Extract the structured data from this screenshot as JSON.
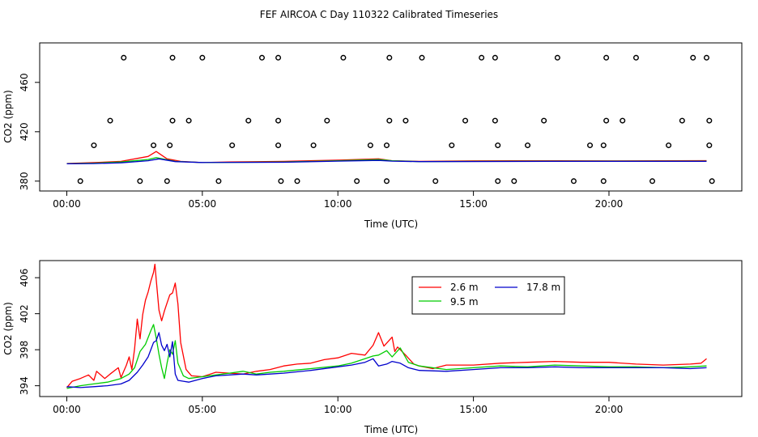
{
  "title": "FEF AIRCOA C  Day 110322  Calibrated Timeseries",
  "chart_data": [
    {
      "type": "line",
      "xlabel": "Time (UTC)",
      "ylabel": "CO2 (ppm)",
      "xlim": [
        -1.0,
        24.9
      ],
      "ylim": [
        372,
        492
      ],
      "x_ticks": [
        0,
        5,
        10,
        15,
        20
      ],
      "x_tick_labels": [
        "00:00",
        "05:00",
        "10:00",
        "15:00",
        "20:00"
      ],
      "y_ticks": [
        380,
        420,
        460
      ],
      "y_tick_labels": [
        "380",
        "420",
        "460"
      ],
      "markers": {
        "style": "open-circle",
        "x": [
          2.1,
          3.9,
          5.0,
          7.2,
          7.8,
          10.2,
          11.9,
          13.1,
          15.3,
          15.8,
          18.1,
          19.9,
          21.0,
          23.1,
          23.6,
          1.6,
          3.9,
          4.5,
          6.7,
          7.8,
          9.6,
          11.9,
          12.5,
          14.7,
          15.8,
          17.6,
          19.9,
          20.5,
          22.7,
          23.7,
          1.0,
          3.2,
          3.8,
          6.1,
          7.8,
          9.1,
          11.2,
          11.8,
          14.2,
          15.9,
          17.0,
          19.3,
          19.8,
          22.2,
          23.7,
          0.5,
          2.7,
          3.7,
          5.6,
          7.9,
          8.5,
          10.7,
          11.8,
          13.6,
          15.9,
          16.5,
          18.7,
          19.8,
          21.6,
          23.8
        ],
        "y": [
          480,
          480,
          480,
          480,
          480,
          480,
          480,
          480,
          480,
          480,
          480,
          480,
          480,
          480,
          480,
          429,
          429,
          429,
          429,
          429,
          429,
          429,
          429,
          429,
          429,
          429,
          429,
          429,
          429,
          429,
          409,
          409,
          409,
          409,
          409,
          409,
          409,
          409,
          409,
          409,
          409,
          409,
          409,
          409,
          409,
          380,
          380,
          380,
          380,
          380,
          380,
          380,
          380,
          380,
          380,
          380,
          380,
          380,
          380,
          380
        ]
      },
      "series": [
        {
          "name": "2.6 m",
          "color": "#ff0000",
          "x": [
            0,
            1,
            2,
            3,
            3.3,
            3.7,
            4.2,
            5,
            6,
            8,
            10,
            11.5,
            12,
            13,
            15,
            18,
            20,
            23.6
          ],
          "values": [
            394.3,
            395,
            396,
            400,
            404,
            398,
            396,
            395,
            395.5,
            396,
            397,
            398,
            396.5,
            396,
            396.4,
            396.5,
            396.4,
            396.6
          ]
        },
        {
          "name": "9.5 m",
          "color": "#00cc00",
          "x": [
            0,
            1,
            2,
            3,
            3.3,
            4,
            5,
            8,
            10,
            11.5,
            12,
            13,
            15,
            18,
            20,
            23.6
          ],
          "values": [
            394.1,
            394.5,
            395.5,
            397.5,
            399,
            396,
            395,
            395.5,
            396.5,
            397.5,
            396.5,
            395.8,
            396,
            396.2,
            396.1,
            396.1
          ]
        },
        {
          "name": "17.8 m",
          "color": "#0000cc",
          "x": [
            0,
            1,
            2,
            3,
            3.4,
            4,
            5,
            8,
            10,
            11.5,
            12,
            13,
            15,
            18,
            20,
            23.6
          ],
          "values": [
            394.0,
            394.2,
            394.8,
            396.5,
            398,
            395.8,
            395.1,
            395.3,
            396.2,
            396.8,
            396.2,
            395.8,
            395.9,
            396.0,
            396.0,
            396.0
          ]
        }
      ]
    },
    {
      "type": "line",
      "xlabel": "Time (UTC)",
      "ylabel": "CO2 (ppm)",
      "xlim": [
        -1.0,
        24.9
      ],
      "ylim": [
        392.8,
        407.9
      ],
      "x_ticks": [
        0,
        5,
        10,
        15,
        20
      ],
      "x_tick_labels": [
        "00:00",
        "05:00",
        "10:00",
        "15:00",
        "20:00"
      ],
      "y_ticks": [
        394,
        398,
        402,
        406
      ],
      "y_tick_labels": [
        "394",
        "398",
        "402",
        "406"
      ],
      "legend": {
        "placement": "top-center",
        "columns": 2
      },
      "series": [
        {
          "name": "2.6 m",
          "color": "#ff0000",
          "x": [
            0,
            0.2,
            0.5,
            0.8,
            1.0,
            1.1,
            1.4,
            1.6,
            1.9,
            2.0,
            2.2,
            2.3,
            2.4,
            2.5,
            2.6,
            2.7,
            2.8,
            2.9,
            3.0,
            3.1,
            3.2,
            3.25,
            3.3,
            3.4,
            3.5,
            3.6,
            3.7,
            3.8,
            3.9,
            4.0,
            4.1,
            4.2,
            4.4,
            4.6,
            5.0,
            5.5,
            6.0,
            6.5,
            7.0,
            7.5,
            8.0,
            8.5,
            9.0,
            9.5,
            10.0,
            10.5,
            11.0,
            11.3,
            11.5,
            11.7,
            12.0,
            12.1,
            12.2,
            12.5,
            12.8,
            13.0,
            13.5,
            14.0,
            15.0,
            16.0,
            17.0,
            18.0,
            19.0,
            20.0,
            21.0,
            22.0,
            23.0,
            23.4,
            23.6
          ],
          "values": [
            393.8,
            394.5,
            394.8,
            395.2,
            394.6,
            395.6,
            394.8,
            395.3,
            396.0,
            394.9,
            396.3,
            397.2,
            395.8,
            398.1,
            401.4,
            399.2,
            401.9,
            403.5,
            404.4,
            405.6,
            406.6,
            407.5,
            405.8,
            402.4,
            401.2,
            402.3,
            403.2,
            404.1,
            404.3,
            405.4,
            403.1,
            398.8,
            395.8,
            395.1,
            395.0,
            395.5,
            395.4,
            395.3,
            395.6,
            395.8,
            396.2,
            396.4,
            396.5,
            396.9,
            397.1,
            397.6,
            397.4,
            398.5,
            399.9,
            398.4,
            399.4,
            397.8,
            398.3,
            397.4,
            396.4,
            396.2,
            395.9,
            396.3,
            396.3,
            396.5,
            396.6,
            396.7,
            396.6,
            396.6,
            396.4,
            396.3,
            396.4,
            396.5,
            397.0
          ]
        },
        {
          "name": "9.5 m",
          "color": "#00cc00",
          "x": [
            0,
            0.5,
            1.0,
            1.5,
            2.0,
            2.3,
            2.5,
            2.7,
            2.9,
            3.1,
            3.2,
            3.3,
            3.4,
            3.5,
            3.6,
            3.7,
            3.8,
            3.9,
            4.0,
            4.1,
            4.3,
            4.5,
            5.0,
            5.5,
            6.0,
            6.5,
            7.0,
            7.5,
            8.0,
            9.0,
            10.0,
            10.5,
            11.0,
            11.3,
            11.5,
            11.8,
            12.0,
            12.3,
            12.6,
            13.0,
            14.0,
            15.0,
            16.0,
            17.0,
            18.0,
            19.0,
            20.0,
            21.0,
            22.0,
            23.0,
            23.6
          ],
          "values": [
            393.7,
            394.0,
            394.2,
            394.4,
            394.8,
            395.3,
            396.0,
            397.8,
            398.6,
            400.1,
            400.8,
            399.3,
            397.5,
            396.0,
            394.8,
            396.5,
            398.0,
            397.5,
            399.0,
            396.5,
            395.1,
            394.8,
            395.0,
            395.2,
            395.4,
            395.6,
            395.3,
            395.5,
            395.6,
            395.9,
            396.2,
            396.5,
            397.0,
            397.3,
            397.4,
            397.9,
            397.2,
            398.2,
            396.6,
            396.2,
            395.8,
            396.0,
            396.2,
            396.1,
            396.3,
            396.2,
            396.1,
            396.1,
            396.0,
            396.1,
            396.2
          ]
        },
        {
          "name": "17.8 m",
          "color": "#0000cc",
          "x": [
            0,
            0.5,
            1.0,
            1.5,
            2.0,
            2.3,
            2.6,
            2.8,
            3.0,
            3.2,
            3.3,
            3.4,
            3.5,
            3.6,
            3.7,
            3.8,
            3.9,
            4.0,
            4.1,
            4.3,
            4.5,
            5.0,
            5.5,
            6.0,
            6.5,
            7.0,
            7.5,
            8.0,
            9.0,
            10.0,
            10.5,
            11.0,
            11.3,
            11.5,
            11.8,
            12.0,
            12.3,
            12.6,
            13.0,
            14.0,
            15.0,
            16.0,
            17.0,
            18.0,
            19.0,
            20.0,
            21.0,
            22.0,
            23.0,
            23.6
          ],
          "values": [
            393.9,
            393.8,
            393.9,
            394.0,
            394.2,
            394.6,
            395.5,
            396.3,
            397.2,
            398.8,
            399.0,
            399.9,
            398.5,
            397.9,
            398.6,
            397.2,
            398.9,
            395.3,
            394.6,
            394.5,
            394.4,
            394.8,
            395.1,
            395.2,
            395.3,
            395.2,
            395.3,
            395.4,
            395.7,
            396.1,
            396.3,
            396.6,
            397.0,
            396.2,
            396.4,
            396.7,
            396.5,
            396.0,
            395.7,
            395.6,
            395.8,
            396.0,
            396.0,
            396.1,
            396.0,
            396.0,
            396.0,
            396.0,
            395.9,
            396.0
          ]
        }
      ]
    }
  ]
}
